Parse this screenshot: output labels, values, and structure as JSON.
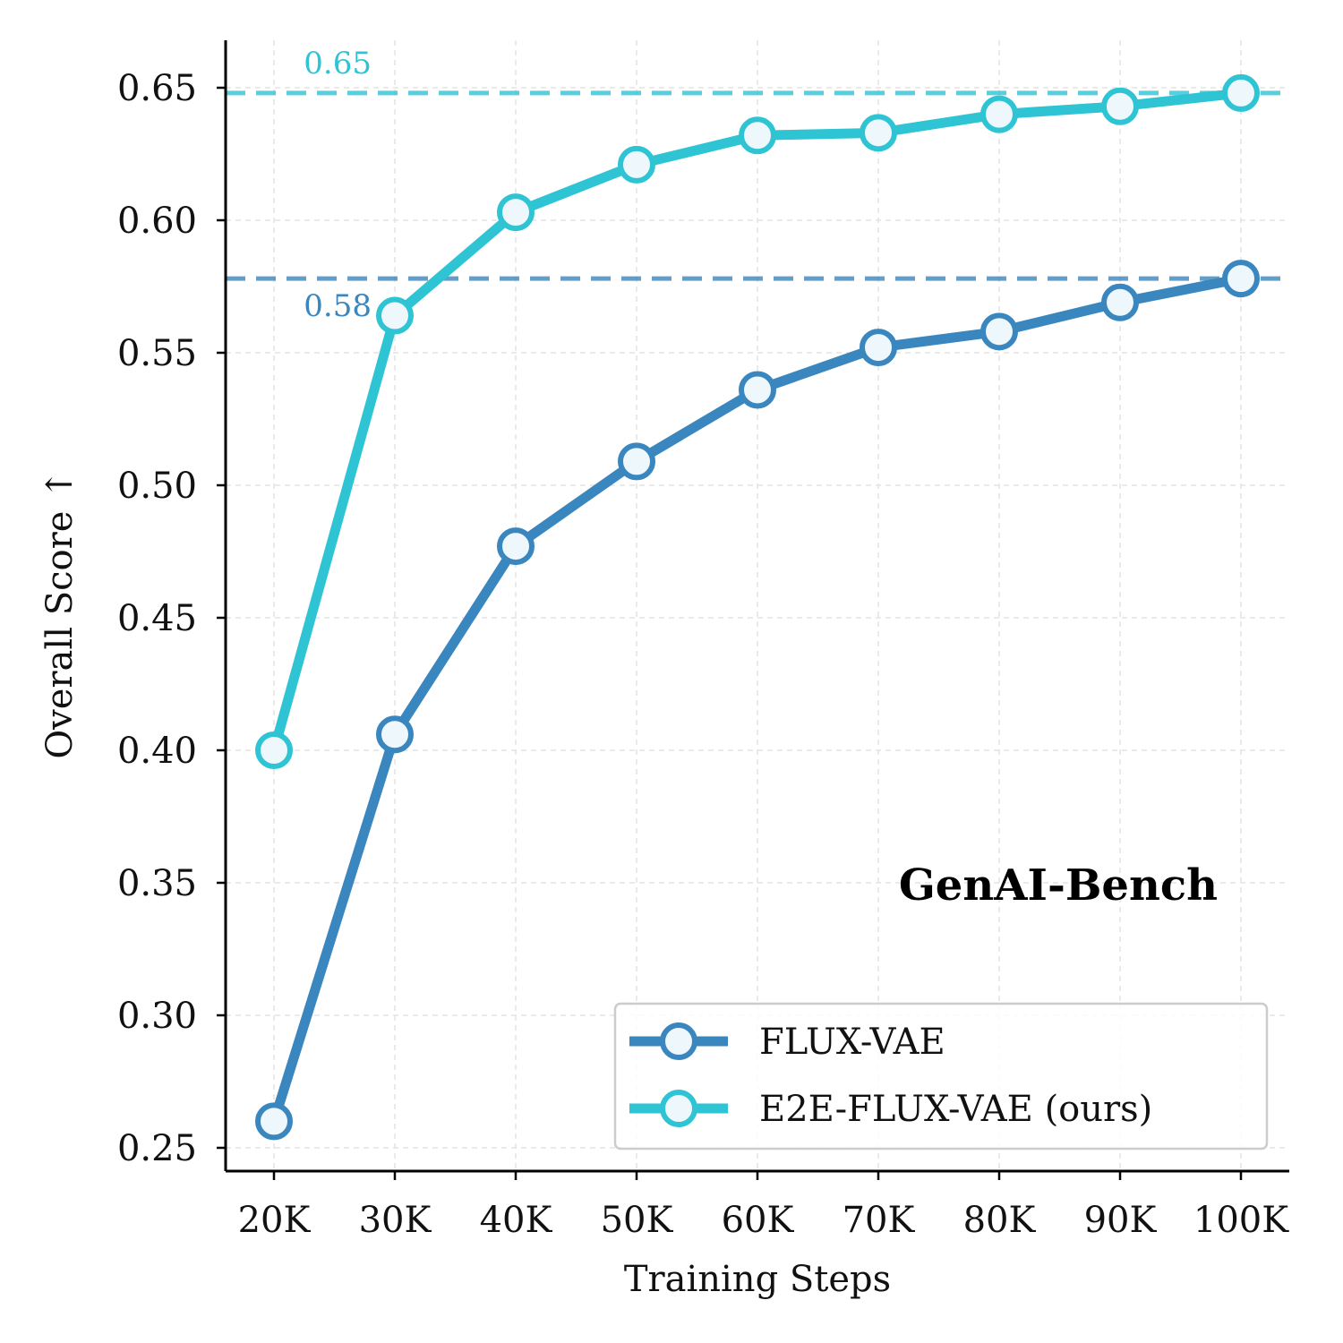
{
  "chart_data": {
    "type": "line",
    "annotation_title": "GenAI-Bench",
    "xlabel": "Training Steps",
    "ylabel": "Overall Score ↑",
    "categories": [
      "20K",
      "30K",
      "40K",
      "50K",
      "60K",
      "70K",
      "80K",
      "90K",
      "100K"
    ],
    "ylim": [
      0.241,
      0.668
    ],
    "yticks": [
      0.25,
      0.3,
      0.35,
      0.4,
      0.45,
      0.5,
      0.55,
      0.6,
      0.65
    ],
    "ytick_labels": [
      "0.25",
      "0.30",
      "0.35",
      "0.40",
      "0.45",
      "0.50",
      "0.55",
      "0.60",
      "0.65"
    ],
    "grid": true,
    "legend_position": "lower-right",
    "series": [
      {
        "name": "FLUX-VAE",
        "color": "#3a86be",
        "values": [
          0.26,
          0.406,
          0.477,
          0.509,
          0.536,
          0.552,
          0.558,
          0.569,
          0.578
        ]
      },
      {
        "name": "E2E-FLUX-VAE (ours)",
        "color": "#2ec4d4",
        "values": [
          0.4,
          0.564,
          0.603,
          0.621,
          0.632,
          0.633,
          0.64,
          0.643,
          0.648
        ]
      }
    ],
    "reference_lines": [
      {
        "value": 0.648,
        "label": "0.65",
        "color": "#2ec4d4"
      },
      {
        "value": 0.578,
        "label": "0.58",
        "color": "#3a86be"
      }
    ]
  }
}
